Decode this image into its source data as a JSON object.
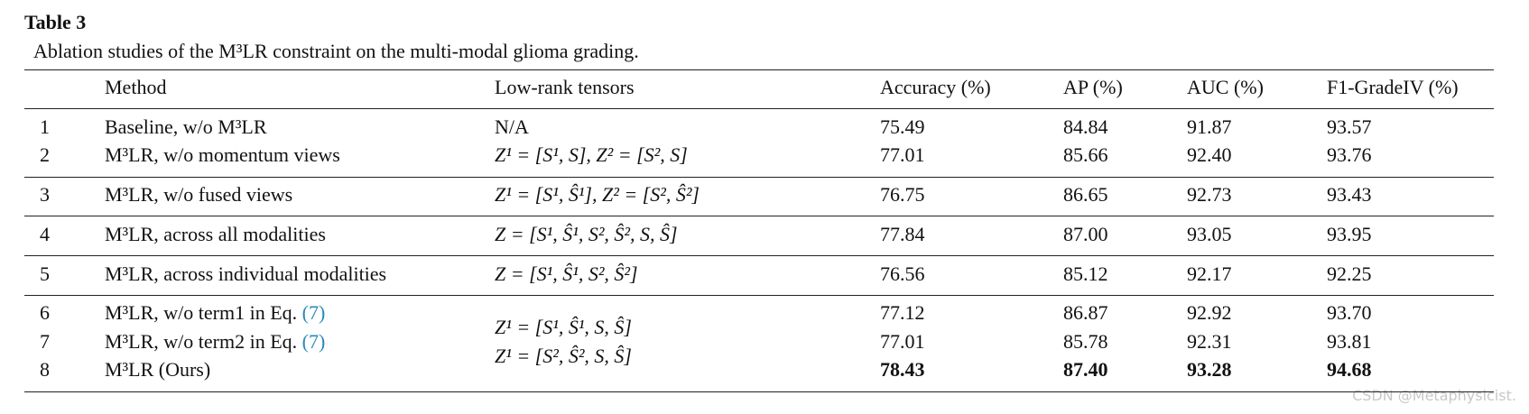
{
  "title": "Table 3",
  "caption": "Ablation studies of the M³LR constraint on the multi-modal glioma grading.",
  "table": {
    "header": [
      "Method",
      "Low-rank tensors",
      "Accuracy (%)",
      "AP (%)",
      "AUC (%)",
      "F1-GradeIV (%)"
    ],
    "rows": [
      {
        "no": "1",
        "method": "Baseline, w/o M³LR",
        "tensors": "N/A",
        "accuracy": "75.49",
        "ap": "84.84",
        "auc": "91.87",
        "f1": "93.57"
      },
      {
        "no": "2",
        "method": "M³LR, w/o momentum views",
        "tensors": "Z¹ = [S¹, S],  Z² = [S², S]",
        "accuracy": "77.01",
        "ap": "85.66",
        "auc": "92.40",
        "f1": "93.76"
      },
      {
        "no": "3",
        "method": "M³LR, w/o fused views",
        "tensors": "Z¹ = [S¹, Ŝ¹],  Z² = [S², Ŝ²]",
        "accuracy": "76.75",
        "ap": "86.65",
        "auc": "92.73",
        "f1": "93.43"
      },
      {
        "no": "4",
        "method": "M³LR, across all modalities",
        "tensors": "Z = [S¹, Ŝ¹, S², Ŝ², S, Ŝ]",
        "accuracy": "77.84",
        "ap": "87.00",
        "auc": "93.05",
        "f1": "93.95"
      },
      {
        "no": "5",
        "method": "M³LR, across individual modalities",
        "tensors": "Z = [S¹, Ŝ¹, S², Ŝ²]",
        "accuracy": "76.56",
        "ap": "85.12",
        "auc": "92.17",
        "f1": "92.25"
      },
      {
        "no": "6",
        "method": "M³LR, w/o term1 in Eq.",
        "ref": "(7)",
        "accuracy": "77.12",
        "ap": "86.87",
        "auc": "92.92",
        "f1": "93.70"
      },
      {
        "no": "7",
        "method": "M³LR, w/o term2 in Eq.",
        "ref": "(7)",
        "accuracy": "77.01",
        "ap": "85.78",
        "auc": "92.31",
        "f1": "93.81"
      },
      {
        "no": "8",
        "method": "M³LR (Ours)",
        "accuracy": "78.43",
        "ap": "87.40",
        "auc": "93.28",
        "f1": "94.68",
        "bold": true
      }
    ],
    "shared_tensors": [
      "Z¹ = [S¹, Ŝ¹, S, Ŝ]",
      "Z¹ = [S², Ŝ², S, Ŝ]"
    ]
  },
  "watermark": "CSDN @Metaphysicist."
}
